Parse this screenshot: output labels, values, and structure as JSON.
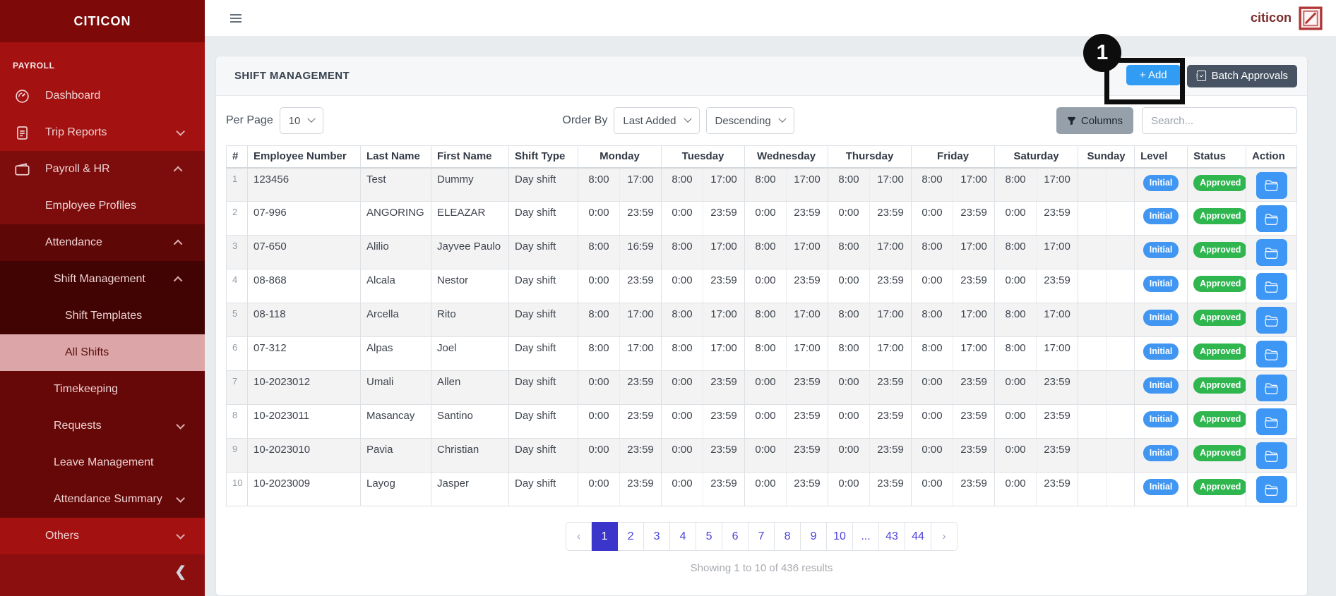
{
  "sidebar": {
    "brand": "CITICON",
    "section_label": "PAYROLL",
    "items": [
      {
        "label": "Dashboard",
        "icon": "gauge-icon",
        "depth": 1,
        "shade": "base"
      },
      {
        "label": "Trip Reports",
        "icon": "document-icon",
        "depth": 1,
        "shade": "base",
        "chevron": "down"
      },
      {
        "label": "Payroll & HR",
        "icon": "wallet-icon",
        "depth": 1,
        "shade": "l2",
        "chevron": "up"
      },
      {
        "label": "Employee Profiles",
        "depth": 2,
        "shade": "l2"
      },
      {
        "label": "Attendance",
        "depth": 2,
        "shade": "l3",
        "chevron": "up"
      },
      {
        "label": "Shift Management",
        "depth": 3,
        "shade": "l4",
        "chevron": "up"
      },
      {
        "label": "Shift Templates",
        "depth": 4,
        "shade": "l4"
      },
      {
        "label": "All Shifts",
        "depth": 4,
        "shade": "active",
        "active": true
      },
      {
        "label": "Timekeeping",
        "depth": 3,
        "shade": "mid"
      },
      {
        "label": "Requests",
        "depth": 3,
        "shade": "mid",
        "chevron": "down"
      },
      {
        "label": "Leave Management",
        "depth": 3,
        "shade": "mid"
      },
      {
        "label": "Attendance Summary",
        "depth": 3,
        "shade": "mid",
        "chevron": "down"
      },
      {
        "label": "Others",
        "depth": 2,
        "shade": "base",
        "chevron": "down"
      }
    ]
  },
  "topbar": {
    "brand": "citicon"
  },
  "page": {
    "title": "SHIFT MANAGEMENT",
    "add_button": "+ Add",
    "batch_button": "Batch Approvals",
    "per_page_label": "Per Page",
    "per_page_value": "10",
    "order_by_label": "Order By",
    "order_by_value": "Last Added",
    "order_dir_value": "Descending",
    "columns_button": "Columns",
    "search_placeholder": "Search..."
  },
  "table": {
    "plain_headers_left": [
      "#",
      "Employee Number",
      "Last Name",
      "First Name",
      "Shift Type"
    ],
    "day_headers": [
      "Monday",
      "Tuesday",
      "Wednesday",
      "Thursday",
      "Friday",
      "Saturday",
      "Sunday"
    ],
    "plain_headers_right": [
      "Level",
      "Status",
      "Action"
    ],
    "rows": [
      {
        "n": "1",
        "emp": "123456",
        "last": "Test",
        "first": "Dummy",
        "shift": "Day shift",
        "days": [
          [
            "8:00",
            "17:00"
          ],
          [
            "8:00",
            "17:00"
          ],
          [
            "8:00",
            "17:00"
          ],
          [
            "8:00",
            "17:00"
          ],
          [
            "8:00",
            "17:00"
          ],
          [
            "8:00",
            "17:00"
          ],
          [
            "",
            ""
          ]
        ],
        "level": "Initial",
        "status": "Approved"
      },
      {
        "n": "2",
        "emp": "07-996",
        "last": "ANGORING",
        "first": "ELEAZAR",
        "shift": "Day shift",
        "days": [
          [
            "0:00",
            "23:59"
          ],
          [
            "0:00",
            "23:59"
          ],
          [
            "0:00",
            "23:59"
          ],
          [
            "0:00",
            "23:59"
          ],
          [
            "0:00",
            "23:59"
          ],
          [
            "0:00",
            "23:59"
          ],
          [
            "",
            ""
          ]
        ],
        "level": "Initial",
        "status": "Approved"
      },
      {
        "n": "3",
        "emp": "07-650",
        "last": "Alilio",
        "first": "Jayvee Paulo",
        "shift": "Day shift",
        "days": [
          [
            "8:00",
            "16:59"
          ],
          [
            "8:00",
            "17:00"
          ],
          [
            "8:00",
            "17:00"
          ],
          [
            "8:00",
            "17:00"
          ],
          [
            "8:00",
            "17:00"
          ],
          [
            "8:00",
            "17:00"
          ],
          [
            "",
            ""
          ]
        ],
        "level": "Initial",
        "status": "Approved"
      },
      {
        "n": "4",
        "emp": "08-868",
        "last": "Alcala",
        "first": "Nestor",
        "shift": "Day shift",
        "days": [
          [
            "0:00",
            "23:59"
          ],
          [
            "0:00",
            "23:59"
          ],
          [
            "0:00",
            "23:59"
          ],
          [
            "0:00",
            "23:59"
          ],
          [
            "0:00",
            "23:59"
          ],
          [
            "0:00",
            "23:59"
          ],
          [
            "",
            ""
          ]
        ],
        "level": "Initial",
        "status": "Approved"
      },
      {
        "n": "5",
        "emp": "08-118",
        "last": "Arcella",
        "first": "Rito",
        "shift": "Day shift",
        "days": [
          [
            "8:00",
            "17:00"
          ],
          [
            "8:00",
            "17:00"
          ],
          [
            "8:00",
            "17:00"
          ],
          [
            "8:00",
            "17:00"
          ],
          [
            "8:00",
            "17:00"
          ],
          [
            "8:00",
            "17:00"
          ],
          [
            "",
            ""
          ]
        ],
        "level": "Initial",
        "status": "Approved"
      },
      {
        "n": "6",
        "emp": "07-312",
        "last": "Alpas",
        "first": "Joel",
        "shift": "Day shift",
        "days": [
          [
            "8:00",
            "17:00"
          ],
          [
            "8:00",
            "17:00"
          ],
          [
            "8:00",
            "17:00"
          ],
          [
            "8:00",
            "17:00"
          ],
          [
            "8:00",
            "17:00"
          ],
          [
            "8:00",
            "17:00"
          ],
          [
            "",
            ""
          ]
        ],
        "level": "Initial",
        "status": "Approved"
      },
      {
        "n": "7",
        "emp": "10-2023012",
        "last": "Umali",
        "first": "Allen",
        "shift": "Day shift",
        "days": [
          [
            "0:00",
            "23:59"
          ],
          [
            "0:00",
            "23:59"
          ],
          [
            "0:00",
            "23:59"
          ],
          [
            "0:00",
            "23:59"
          ],
          [
            "0:00",
            "23:59"
          ],
          [
            "0:00",
            "23:59"
          ],
          [
            "",
            ""
          ]
        ],
        "level": "Initial",
        "status": "Approved"
      },
      {
        "n": "8",
        "emp": "10-2023011",
        "last": "Masancay",
        "first": "Santino",
        "shift": "Day shift",
        "days": [
          [
            "0:00",
            "23:59"
          ],
          [
            "0:00",
            "23:59"
          ],
          [
            "0:00",
            "23:59"
          ],
          [
            "0:00",
            "23:59"
          ],
          [
            "0:00",
            "23:59"
          ],
          [
            "0:00",
            "23:59"
          ],
          [
            "",
            ""
          ]
        ],
        "level": "Initial",
        "status": "Approved"
      },
      {
        "n": "9",
        "emp": "10-2023010",
        "last": "Pavia",
        "first": "Christian",
        "shift": "Day shift",
        "days": [
          [
            "0:00",
            "23:59"
          ],
          [
            "0:00",
            "23:59"
          ],
          [
            "0:00",
            "23:59"
          ],
          [
            "0:00",
            "23:59"
          ],
          [
            "0:00",
            "23:59"
          ],
          [
            "0:00",
            "23:59"
          ],
          [
            "",
            ""
          ]
        ],
        "level": "Initial",
        "status": "Approved"
      },
      {
        "n": "10",
        "emp": "10-2023009",
        "last": "Layog",
        "first": "Jasper",
        "shift": "Day shift",
        "days": [
          [
            "0:00",
            "23:59"
          ],
          [
            "0:00",
            "23:59"
          ],
          [
            "0:00",
            "23:59"
          ],
          [
            "0:00",
            "23:59"
          ],
          [
            "0:00",
            "23:59"
          ],
          [
            "0:00",
            "23:59"
          ],
          [
            "",
            ""
          ]
        ],
        "level": "Initial",
        "status": "Approved"
      }
    ]
  },
  "pagination": {
    "prev": "‹",
    "next": "›",
    "pages": [
      "1",
      "2",
      "3",
      "4",
      "5",
      "6",
      "7",
      "8",
      "9",
      "10",
      "...",
      "43",
      "44"
    ],
    "active": "1",
    "summary": "Showing 1 to 10 of 436 results"
  },
  "annotation": {
    "step_label": "1"
  },
  "colors": {
    "sidebar_red": "#a31111",
    "sidebar_dark": "#7d0909",
    "active_item_bg": "#dca6a8",
    "add_blue": "#319cf4",
    "batch_gray": "#475362",
    "badge_blue": "#4096f0",
    "badge_green": "#2fb64f",
    "pagination_indigo": "#3b35cb"
  }
}
